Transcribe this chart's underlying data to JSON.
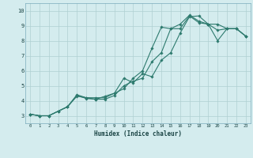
{
  "xlabel": "Humidex (Indice chaleur)",
  "ylabel": "",
  "xlim": [
    -0.5,
    23.5
  ],
  "ylim": [
    2.5,
    10.5
  ],
  "xticks": [
    0,
    1,
    2,
    3,
    4,
    5,
    6,
    7,
    8,
    9,
    10,
    11,
    12,
    13,
    14,
    15,
    16,
    17,
    18,
    19,
    20,
    21,
    22,
    23
  ],
  "yticks": [
    3,
    4,
    5,
    6,
    7,
    8,
    9,
    10
  ],
  "background_color": "#d4ecee",
  "grid_color": "#b0d0d2",
  "line_color": "#2d7a6e",
  "line1_x": [
    0,
    1,
    2,
    3,
    4,
    5,
    6,
    7,
    8,
    9,
    10,
    11,
    12,
    13,
    14,
    15,
    16,
    17,
    18,
    19,
    20,
    21,
    22,
    23
  ],
  "line1_y": [
    3.1,
    3.0,
    3.0,
    3.3,
    3.6,
    4.35,
    4.15,
    4.1,
    4.1,
    4.35,
    5.0,
    5.3,
    5.5,
    6.6,
    7.2,
    8.8,
    9.1,
    9.7,
    9.3,
    9.1,
    9.1,
    8.8,
    8.8,
    8.3
  ],
  "line2_x": [
    0,
    1,
    2,
    3,
    4,
    5,
    6,
    7,
    8,
    9,
    10,
    11,
    12,
    13,
    14,
    15,
    16,
    17,
    18,
    19,
    20,
    21,
    22,
    23
  ],
  "line2_y": [
    3.1,
    3.0,
    3.0,
    3.3,
    3.6,
    4.4,
    4.2,
    4.2,
    4.2,
    4.5,
    4.8,
    5.5,
    6.0,
    7.5,
    8.9,
    8.8,
    8.8,
    9.65,
    9.2,
    9.1,
    8.0,
    8.8,
    8.8,
    8.3
  ],
  "line3_x": [
    0,
    1,
    2,
    3,
    4,
    5,
    6,
    7,
    8,
    9,
    10,
    11,
    12,
    13,
    14,
    15,
    16,
    17,
    18,
    19,
    20,
    21,
    22,
    23
  ],
  "line3_y": [
    3.1,
    3.0,
    3.0,
    3.3,
    3.6,
    4.3,
    4.2,
    4.1,
    4.3,
    4.5,
    5.5,
    5.2,
    5.8,
    5.6,
    6.7,
    7.2,
    8.5,
    9.6,
    9.65,
    9.1,
    8.7,
    8.8,
    8.8,
    8.3
  ]
}
